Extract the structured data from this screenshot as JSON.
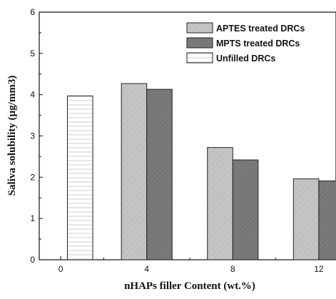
{
  "chart_data": {
    "type": "bar",
    "xlabel": "nHAPs filler Content (wt.%)",
    "ylabel": "Saliva solubility (µg/mm3)",
    "xlim": [
      -1,
      12.8
    ],
    "ylim": [
      0,
      6
    ],
    "x_ticks": [
      "0",
      "4",
      "8",
      "12"
    ],
    "y_ticks": [
      "0",
      "1",
      "2",
      "3",
      "4",
      "5",
      "6"
    ],
    "legend_position": "top-right",
    "grid": false,
    "series": [
      {
        "name": "APTES treated DRCs",
        "fill": "#c4c4c4",
        "points": [
          {
            "x": 4,
            "y": 4.27
          },
          {
            "x": 8,
            "y": 2.72
          },
          {
            "x": 12,
            "y": 1.96
          }
        ]
      },
      {
        "name": "MPTS treated DRCs",
        "fill": "#7a7a7a",
        "points": [
          {
            "x": 4,
            "y": 4.13
          },
          {
            "x": 8,
            "y": 2.42
          },
          {
            "x": 12,
            "y": 1.91
          }
        ]
      },
      {
        "name": "Unfilled DRCs",
        "fill": "#ffffff",
        "points": [
          {
            "x": 0,
            "y": 3.97
          }
        ]
      }
    ]
  }
}
